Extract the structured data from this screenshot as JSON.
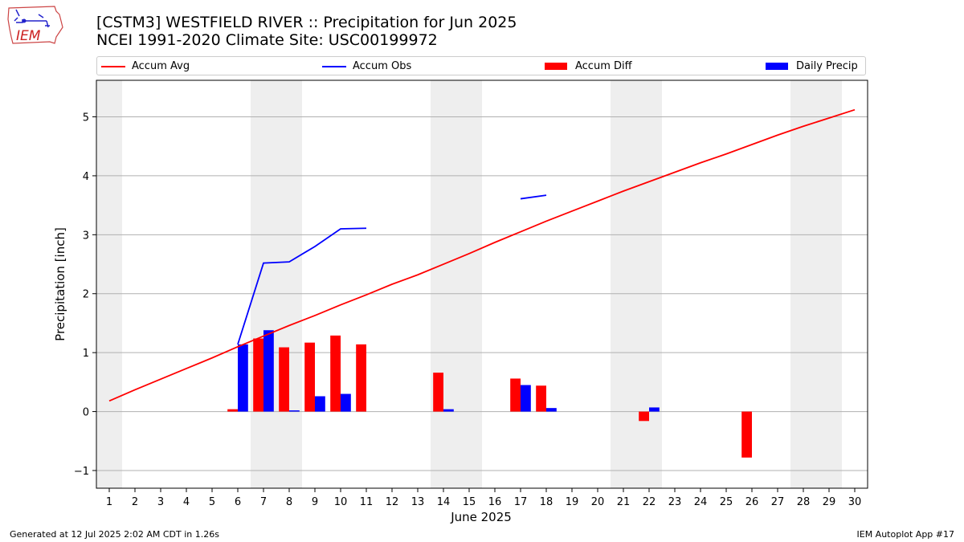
{
  "logo": {
    "text": "IEM",
    "icon": "iem-iowa-logo"
  },
  "header": {
    "title_line1": "[CSTM3] WESTFIELD RIVER :: Precipitation for Jun 2025",
    "title_line2": "NCEI 1991-2020 Climate Site: USC00199972"
  },
  "legend": {
    "accum_avg": "Accum Avg",
    "accum_obs": "Accum Obs",
    "accum_diff": "Accum Diff",
    "daily_precip": "Daily Precip"
  },
  "footer": {
    "left": "Generated at 12 Jul 2025 2:02 AM CDT in 1.26s",
    "right": "IEM Autoplot App #17"
  },
  "colors": {
    "avg": "#ff0000",
    "obs": "#0000ff",
    "diff": "#ff0000",
    "daily": "#0000ff",
    "weekend": "#eeeeee",
    "grid": "#b0b0b0"
  },
  "chart_data": {
    "type": "bar",
    "xlabel": "June 2025",
    "ylabel": "Precipitation [inch]",
    "ylim": [
      -1.3,
      5.62
    ],
    "yticks": [
      -1,
      0,
      1,
      2,
      3,
      4,
      5
    ],
    "x": [
      1,
      2,
      3,
      4,
      5,
      6,
      7,
      8,
      9,
      10,
      11,
      12,
      13,
      14,
      15,
      16,
      17,
      18,
      19,
      20,
      21,
      22,
      23,
      24,
      25,
      26,
      27,
      28,
      29,
      30
    ],
    "shaded_days": [
      1,
      7,
      8,
      14,
      15,
      21,
      22,
      28,
      29
    ],
    "grid": "horizontal",
    "legend_position": "top",
    "series": [
      {
        "name": "Accum Avg",
        "type": "line",
        "values": [
          0.18,
          0.37,
          0.55,
          0.73,
          0.91,
          1.1,
          1.28,
          1.46,
          1.63,
          1.81,
          1.98,
          2.16,
          2.32,
          2.5,
          2.68,
          2.87,
          3.05,
          3.23,
          3.4,
          3.57,
          3.74,
          3.9,
          4.06,
          4.22,
          4.37,
          4.53,
          4.69,
          4.84,
          4.98,
          5.12
        ]
      },
      {
        "name": "Accum Obs",
        "type": "line",
        "values": [
          null,
          null,
          null,
          null,
          null,
          1.14,
          2.52,
          2.54,
          2.8,
          3.1,
          3.11,
          null,
          null,
          null,
          null,
          null,
          3.61,
          3.67,
          null,
          null,
          null,
          null,
          null,
          null,
          null,
          null,
          null,
          null,
          null,
          null
        ]
      },
      {
        "name": "Accum Diff",
        "type": "bar",
        "values": [
          null,
          null,
          null,
          null,
          null,
          0.04,
          1.24,
          1.09,
          1.17,
          1.29,
          1.14,
          null,
          null,
          0.66,
          null,
          null,
          0.56,
          0.44,
          null,
          null,
          null,
          -0.16,
          null,
          null,
          null,
          -0.78,
          null,
          null,
          null,
          null
        ]
      },
      {
        "name": "Daily Precip",
        "type": "bar",
        "values": [
          null,
          null,
          null,
          null,
          null,
          1.14,
          1.38,
          0.02,
          0.26,
          0.3,
          null,
          null,
          null,
          0.04,
          null,
          null,
          0.45,
          0.06,
          null,
          null,
          null,
          0.07,
          null,
          null,
          null,
          null,
          null,
          null,
          null,
          null
        ]
      }
    ]
  }
}
